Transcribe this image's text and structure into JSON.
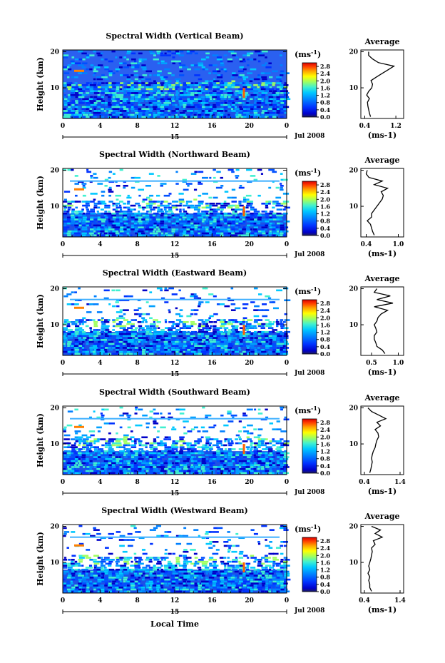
{
  "chart_data": {
    "type": "heatmap",
    "panel_titles": [
      "Spectral Width (Vertical Beam)",
      "Spectral Width (Northward Beam)",
      "Spectral Width (Eastward Beam)",
      "Spectral Width (Southward Beam)",
      "Spectral Width (Westward Beam)"
    ],
    "ylabel": "Height (km)",
    "xlabel": "Local Time",
    "ylim": [
      1.5,
      20.5
    ],
    "xlim": [
      0,
      24
    ],
    "x_ticks": [
      "0",
      "4",
      "8",
      "12",
      "16",
      "20",
      "0"
    ],
    "y_ticks": [
      "20",
      "10"
    ],
    "date_day": "15",
    "date_label": "Jul 2008",
    "colorbar": {
      "unit_label": "(ms",
      "unit_exp": "-1",
      "unit_close": ")",
      "tick_labels": [
        "2.8",
        "2.4",
        "2.0",
        "1.6",
        "1.2",
        "0.8",
        "0.4",
        "0.0"
      ],
      "range": [
        0,
        3.0
      ],
      "colors": [
        "#1e1e5a",
        "#0000c8",
        "#0032ff",
        "#0080ff",
        "#00c8ff",
        "#40f0d0",
        "#a0ff60",
        "#ffff00",
        "#ffa000",
        "#ff4000",
        "#dc0000"
      ]
    },
    "average_profiles": [
      {
        "title": "Average",
        "xlim": [
          0.3,
          1.4
        ],
        "x_ticks": [
          "0.4",
          "1.2"
        ],
        "xlabel": "(ms-1)",
        "height_km": [
          2,
          3,
          4,
          5,
          6,
          7,
          8,
          9,
          10,
          11,
          12,
          13,
          14,
          15,
          16,
          17,
          18,
          19,
          20
        ],
        "width_ms": [
          0.55,
          0.52,
          0.5,
          0.48,
          0.47,
          0.52,
          0.45,
          0.5,
          0.58,
          0.6,
          0.56,
          0.7,
          0.85,
          1.0,
          1.15,
          0.75,
          0.6,
          0.5,
          0.5
        ]
      },
      {
        "title": "Average",
        "xlim": [
          0.3,
          1.1
        ],
        "x_ticks": [
          "0.4",
          "1.0"
        ],
        "xlabel": "(ms-1)",
        "height_km": [
          2,
          3,
          4,
          5,
          6,
          7,
          8,
          9,
          10,
          11,
          12,
          13,
          14,
          15,
          16,
          17,
          18,
          19,
          20
        ],
        "width_ms": [
          0.55,
          0.52,
          0.5,
          0.48,
          0.42,
          0.5,
          0.5,
          0.55,
          0.6,
          0.65,
          0.7,
          0.72,
          0.68,
          0.8,
          0.55,
          0.7,
          0.45,
          0.4,
          0.42
        ]
      },
      {
        "title": "Average",
        "xlim": [
          0.3,
          1.1
        ],
        "x_ticks": [
          "0.5",
          "1.0"
        ],
        "xlabel": "(ms-1)",
        "height_km": [
          2,
          3,
          4,
          5,
          6,
          7,
          8,
          9,
          10,
          11,
          12,
          13,
          14,
          15,
          16,
          17,
          18,
          19,
          20
        ],
        "width_ms": [
          0.75,
          0.7,
          0.6,
          0.58,
          0.55,
          0.55,
          0.6,
          0.58,
          0.55,
          0.6,
          0.62,
          0.68,
          0.8,
          0.55,
          0.9,
          0.6,
          0.85,
          0.55,
          0.6
        ]
      },
      {
        "title": "Average",
        "xlim": [
          0.3,
          1.5
        ],
        "x_ticks": [
          "0.4",
          "1.4"
        ],
        "xlabel": "(ms-1)",
        "height_km": [
          2,
          3,
          4,
          5,
          6,
          7,
          8,
          9,
          10,
          11,
          12,
          13,
          14,
          15,
          16,
          17,
          18,
          19,
          20
        ],
        "width_ms": [
          0.55,
          0.58,
          0.6,
          0.62,
          0.6,
          0.62,
          0.65,
          0.7,
          0.72,
          0.75,
          0.8,
          0.78,
          0.7,
          0.85,
          0.75,
          1.0,
          0.8,
          0.6,
          0.5
        ]
      },
      {
        "title": "Average",
        "xlim": [
          0.3,
          1.5
        ],
        "x_ticks": [
          "0.4",
          "1.4"
        ],
        "xlabel": "(ms-1)",
        "height_km": [
          2,
          3,
          4,
          5,
          6,
          7,
          8,
          9,
          10,
          11,
          12,
          13,
          14,
          15,
          16,
          17,
          18,
          19,
          20
        ],
        "width_ms": [
          0.6,
          0.55,
          0.55,
          0.52,
          0.55,
          0.5,
          0.55,
          0.52,
          0.55,
          0.58,
          0.6,
          0.62,
          0.6,
          0.7,
          0.65,
          0.9,
          0.7,
          0.85,
          0.6
        ]
      }
    ]
  }
}
